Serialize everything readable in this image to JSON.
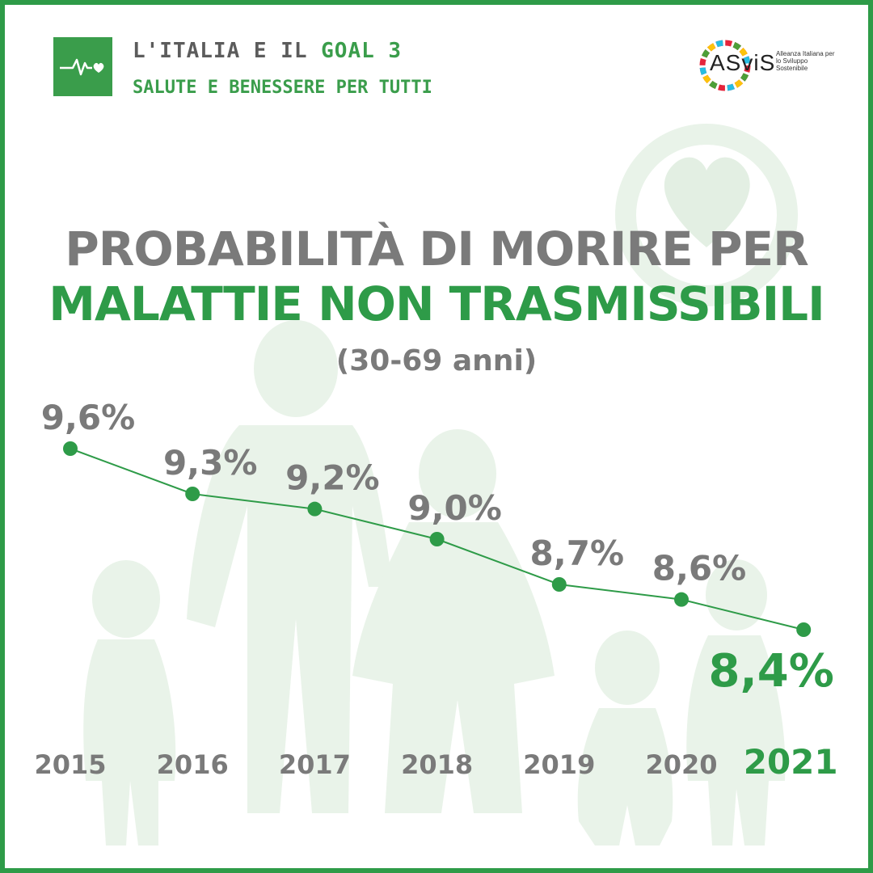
{
  "header": {
    "line1_prefix": "L'ITALIA E IL",
    "line1_goal": "GOAL 3",
    "line2": "SALUTE E BENESSERE PER TUTTI"
  },
  "logo": {
    "word": "ASviS",
    "subtitle": "Alleanza Italiana per lo Sviluppo Sostenibile"
  },
  "title": {
    "line1": "PROBABILITÀ DI MORIRE PER",
    "line2": "MALATTIE NON TRASMISSIBILI",
    "subtitle": "(30-69 anni)"
  },
  "colors": {
    "green": "#2e9b48",
    "gray": "#7a7a7a",
    "background_art": "#e8f2e8"
  },
  "icons": [
    "heartbeat-icon",
    "asvis-wheel-icon"
  ],
  "chart_data": {
    "type": "line",
    "title": "PROBABILITÀ DI MORIRE PER MALATTIE NON TRASMISSIBILI (30-69 anni)",
    "x": [
      "2015",
      "2016",
      "2017",
      "2018",
      "2019",
      "2020",
      "2021"
    ],
    "values": [
      9.6,
      9.3,
      9.2,
      9.0,
      8.7,
      8.6,
      8.4
    ],
    "labels": [
      "9,6%",
      "9,3%",
      "9,2%",
      "9,0%",
      "8,7%",
      "8,6%",
      "8,4%"
    ],
    "highlight_index": 6,
    "unit": "%",
    "ylim": [
      8.4,
      9.6
    ]
  }
}
